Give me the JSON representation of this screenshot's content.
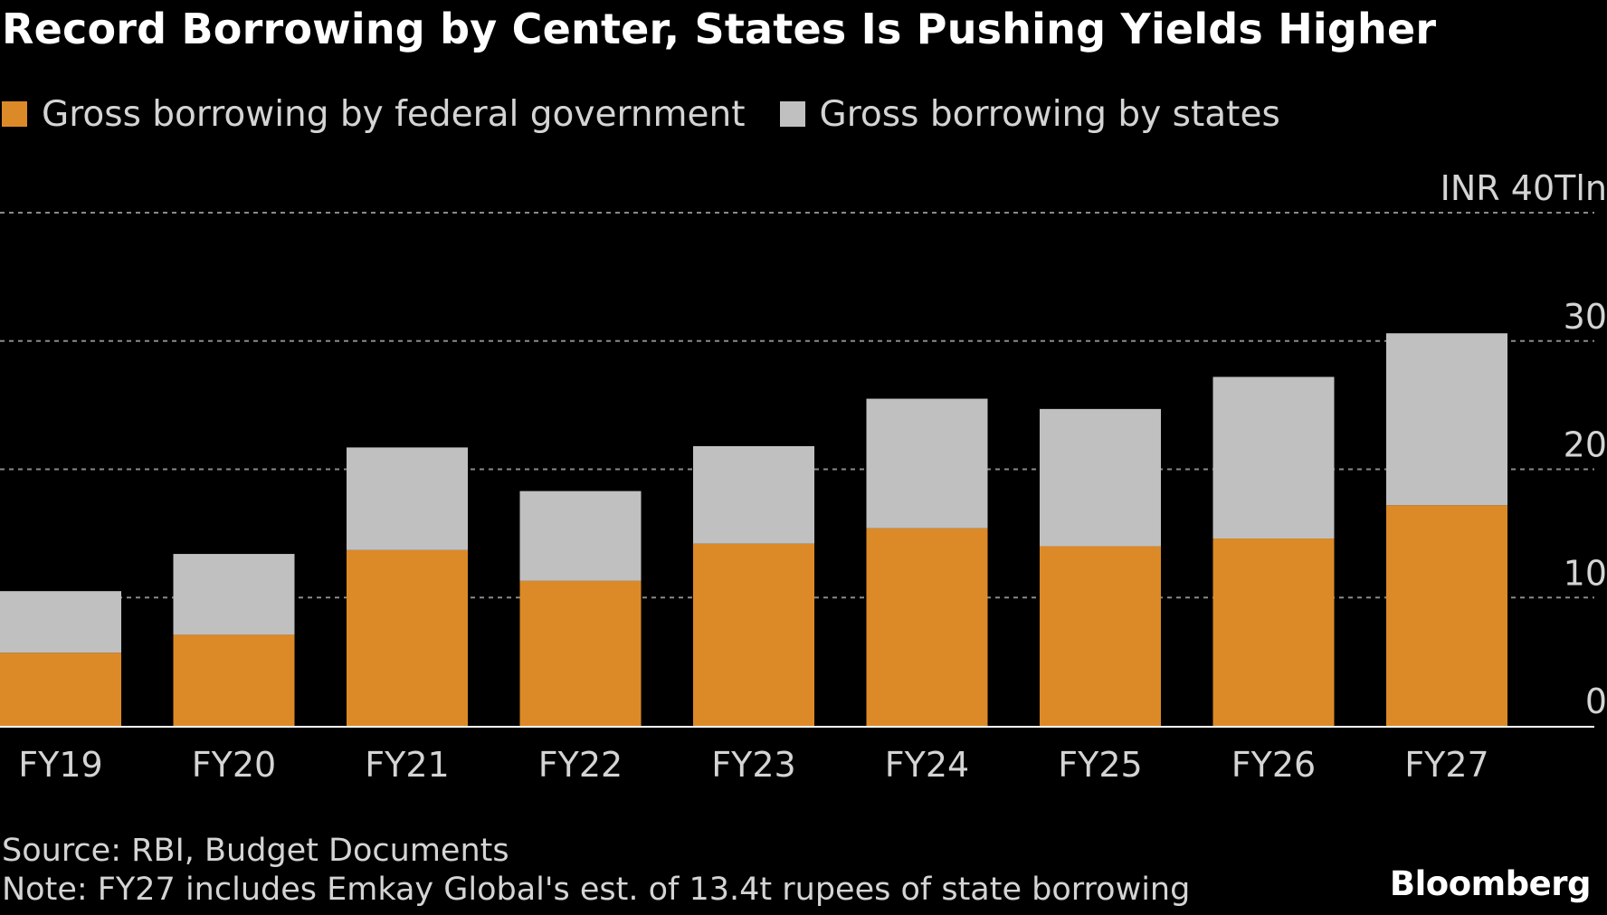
{
  "colors": {
    "federal": "#dc8a27",
    "states": "#c0c0c0",
    "grid": "#8a8a8a",
    "axis": "#ffffff",
    "background": "#000000"
  },
  "chart_data": {
    "type": "bar",
    "stacked": true,
    "title": "Record Borrowing by Center, States Is Pushing Yields Higher",
    "categories": [
      "FY19",
      "FY20",
      "FY21",
      "FY22",
      "FY23",
      "FY24",
      "FY25",
      "FY26",
      "FY27"
    ],
    "series": [
      {
        "name": "Gross borrowing by federal government",
        "color": "#dc8a27",
        "values": [
          5.7,
          7.1,
          13.7,
          11.3,
          14.2,
          15.4,
          14.0,
          14.6,
          17.2
        ]
      },
      {
        "name": "Gross borrowing by states",
        "color": "#c0c0c0",
        "values": [
          4.8,
          6.3,
          8.0,
          7.0,
          7.6,
          10.1,
          10.7,
          12.6,
          13.4
        ]
      }
    ],
    "yaxis": {
      "unit_label": "INR 40Tln",
      "ticks": [
        0,
        10,
        20,
        30,
        40
      ],
      "tick_labels": [
        "0",
        "10",
        "20",
        "30",
        "INR 40Tln"
      ],
      "ylim": [
        0,
        40
      ],
      "position": "right",
      "grid": "dashed"
    },
    "legend": {
      "placement": "top-left"
    },
    "footer": {
      "source": "Source: RBI, Budget Documents",
      "note": "Note: FY27 includes Emkay Global's est. of 13.4t rupees of state borrowing",
      "brand": "Bloomberg"
    }
  }
}
